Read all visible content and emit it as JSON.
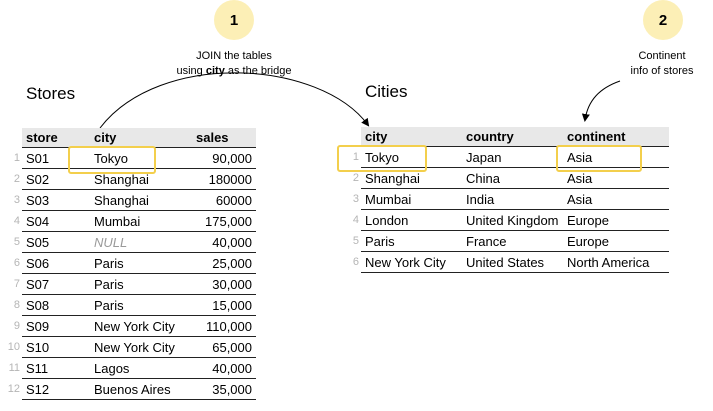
{
  "annotations": {
    "step1": {
      "badge": "1",
      "line1": "JOIN the tables",
      "line2_pre": "using ",
      "line2_bold": "city",
      "line2_post": " as the bridge"
    },
    "step2": {
      "badge": "2",
      "line1": "Continent",
      "line2": "info of stores"
    }
  },
  "colors": {
    "highlight": "#f3cf4c",
    "badge": "#fcefb6",
    "header_bg": "#e8e8e8",
    "row_index": "#b5b5b5"
  },
  "stores": {
    "title": "Stores",
    "columns": [
      "store",
      "city",
      "sales"
    ],
    "rows": [
      {
        "idx": "1",
        "store": "S01",
        "city": "Tokyo",
        "sales": "90,000"
      },
      {
        "idx": "2",
        "store": "S02",
        "city": "Shanghai",
        "sales": "180000"
      },
      {
        "idx": "3",
        "store": "S03",
        "city": "Shanghai",
        "sales": "60000"
      },
      {
        "idx": "4",
        "store": "S04",
        "city": "Mumbai",
        "sales": "175,000"
      },
      {
        "idx": "5",
        "store": "S05",
        "city": "NULL",
        "sales": "40,000"
      },
      {
        "idx": "6",
        "store": "S06",
        "city": "Paris",
        "sales": "25,000"
      },
      {
        "idx": "7",
        "store": "S07",
        "city": "Paris",
        "sales": "30,000"
      },
      {
        "idx": "8",
        "store": "S08",
        "city": "Paris",
        "sales": "15,000"
      },
      {
        "idx": "9",
        "store": "S09",
        "city": "New York City",
        "sales": "110,000"
      },
      {
        "idx": "10",
        "store": "S10",
        "city": "New York City",
        "sales": "65,000"
      },
      {
        "idx": "11",
        "store": "S11",
        "city": "Lagos",
        "sales": "40,000"
      },
      {
        "idx": "12",
        "store": "S12",
        "city": "Buenos Aires",
        "sales": "35,000"
      }
    ]
  },
  "cities": {
    "title": "Cities",
    "columns": [
      "city",
      "country",
      "continent"
    ],
    "rows": [
      {
        "idx": "1",
        "city": "Tokyo",
        "country": "Japan",
        "continent": "Asia"
      },
      {
        "idx": "2",
        "city": "Shanghai",
        "country": "China",
        "continent": "Asia"
      },
      {
        "idx": "3",
        "city": "Mumbai",
        "country": "India",
        "continent": "Asia"
      },
      {
        "idx": "4",
        "city": "London",
        "country": "United Kingdom",
        "continent": "Europe"
      },
      {
        "idx": "5",
        "city": "Paris",
        "country": "France",
        "continent": "Europe"
      },
      {
        "idx": "6",
        "city": "New York City",
        "country": "United States",
        "continent": "North America"
      }
    ]
  }
}
